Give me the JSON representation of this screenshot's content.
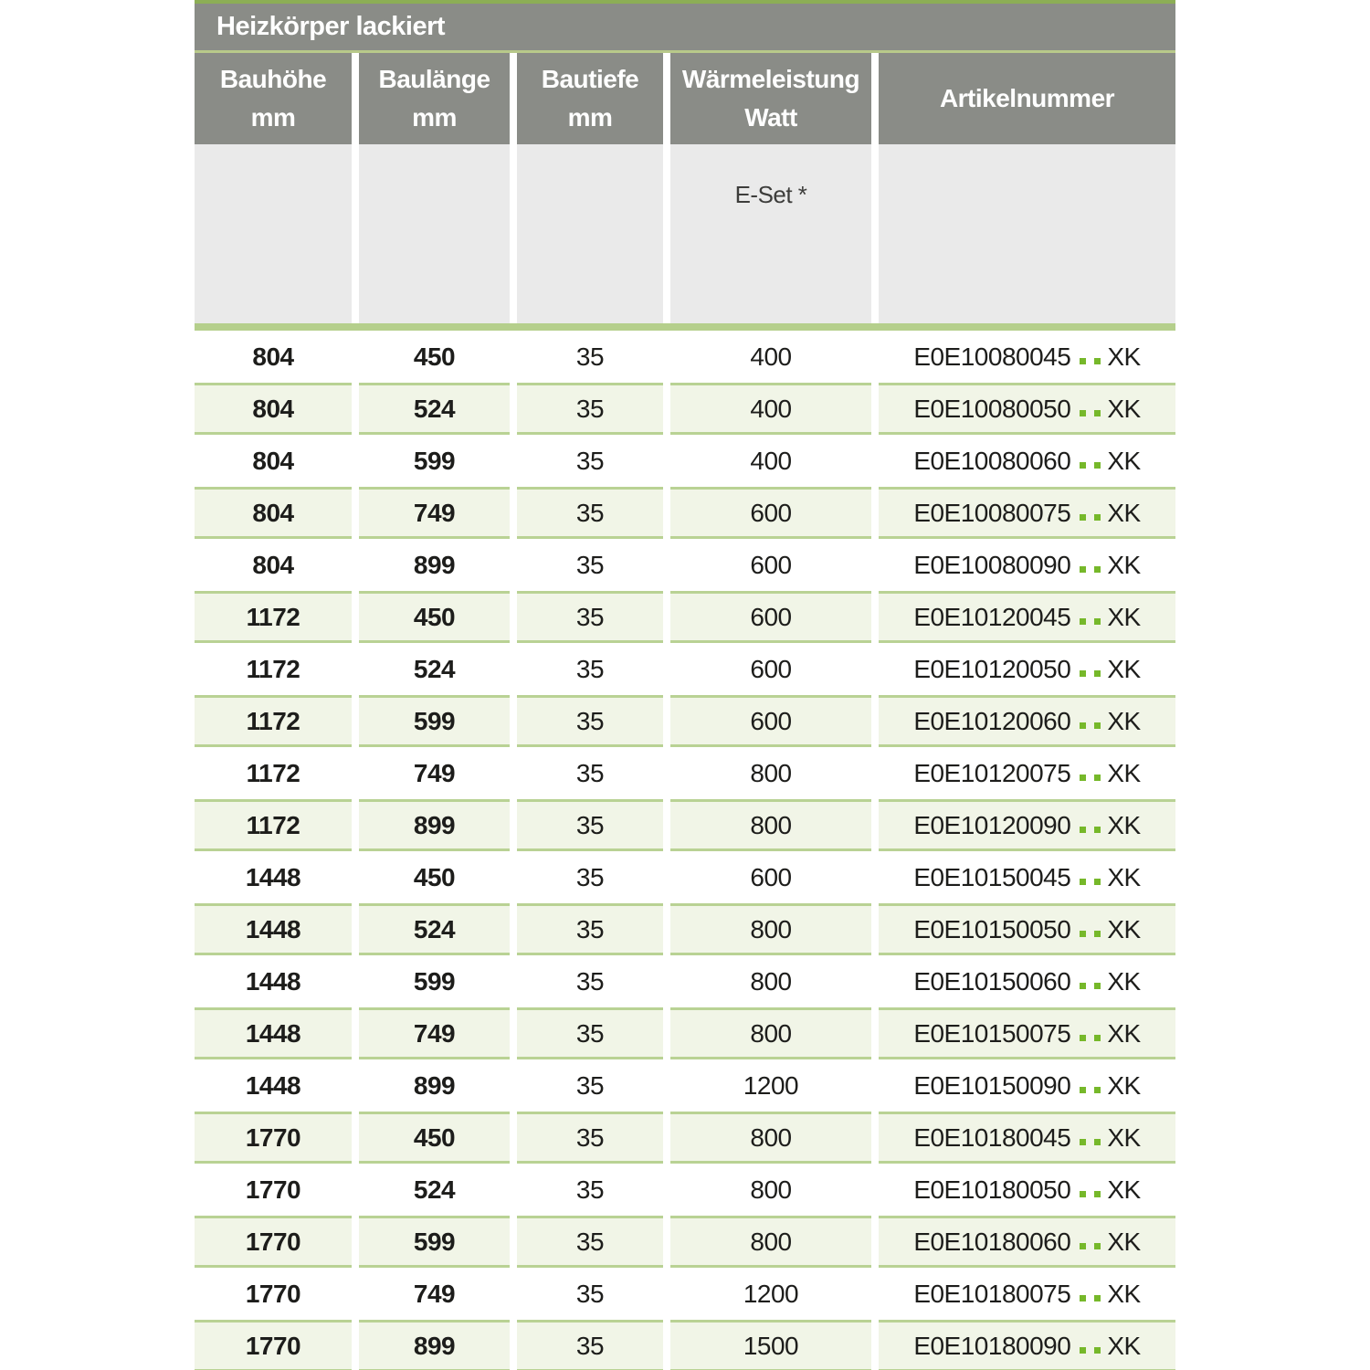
{
  "title": "Heizkörper lackiert",
  "columns": [
    {
      "line1": "Bauhöhe",
      "line2": "mm"
    },
    {
      "line1": "Baulänge",
      "line2": "mm"
    },
    {
      "line1": "Bautiefe",
      "line2": "mm"
    },
    {
      "line1": "Wärmeleistung",
      "line2": "Watt"
    },
    {
      "line1": "Artikelnummer",
      "line2": ""
    }
  ],
  "subheader": {
    "eset_label": "E-Set *"
  },
  "colors": {
    "header_gray": "#8a8c87",
    "top_strip_green": "#8cae55",
    "title_underline_green": "#b8c98a",
    "subheader_gray": "#eaeaea",
    "separator_green": "#b5cf8c",
    "tint_row_bg": "#f1f5e7",
    "tint_row_border": "#b9d294",
    "article_dot_green": "#76b82a",
    "text_dark": "#1d1d1b"
  },
  "rows": [
    {
      "bauhoehe": "804",
      "baulaenge": "450",
      "bautiefe": "35",
      "watt": "400",
      "artikel_prefix": "E0E10080045",
      "artikel_suffix": "XK"
    },
    {
      "bauhoehe": "804",
      "baulaenge": "524",
      "bautiefe": "35",
      "watt": "400",
      "artikel_prefix": "E0E10080050",
      "artikel_suffix": "XK"
    },
    {
      "bauhoehe": "804",
      "baulaenge": "599",
      "bautiefe": "35",
      "watt": "400",
      "artikel_prefix": "E0E10080060",
      "artikel_suffix": "XK"
    },
    {
      "bauhoehe": "804",
      "baulaenge": "749",
      "bautiefe": "35",
      "watt": "600",
      "artikel_prefix": "E0E10080075",
      "artikel_suffix": "XK"
    },
    {
      "bauhoehe": "804",
      "baulaenge": "899",
      "bautiefe": "35",
      "watt": "600",
      "artikel_prefix": "E0E10080090",
      "artikel_suffix": "XK"
    },
    {
      "bauhoehe": "1172",
      "baulaenge": "450",
      "bautiefe": "35",
      "watt": "600",
      "artikel_prefix": "E0E10120045",
      "artikel_suffix": "XK"
    },
    {
      "bauhoehe": "1172",
      "baulaenge": "524",
      "bautiefe": "35",
      "watt": "600",
      "artikel_prefix": "E0E10120050",
      "artikel_suffix": "XK"
    },
    {
      "bauhoehe": "1172",
      "baulaenge": "599",
      "bautiefe": "35",
      "watt": "600",
      "artikel_prefix": "E0E10120060",
      "artikel_suffix": "XK"
    },
    {
      "bauhoehe": "1172",
      "baulaenge": "749",
      "bautiefe": "35",
      "watt": "800",
      "artikel_prefix": "E0E10120075",
      "artikel_suffix": "XK"
    },
    {
      "bauhoehe": "1172",
      "baulaenge": "899",
      "bautiefe": "35",
      "watt": "800",
      "artikel_prefix": "E0E10120090",
      "artikel_suffix": "XK"
    },
    {
      "bauhoehe": "1448",
      "baulaenge": "450",
      "bautiefe": "35",
      "watt": "600",
      "artikel_prefix": "E0E10150045",
      "artikel_suffix": "XK"
    },
    {
      "bauhoehe": "1448",
      "baulaenge": "524",
      "bautiefe": "35",
      "watt": "800",
      "artikel_prefix": "E0E10150050",
      "artikel_suffix": "XK"
    },
    {
      "bauhoehe": "1448",
      "baulaenge": "599",
      "bautiefe": "35",
      "watt": "800",
      "artikel_prefix": "E0E10150060",
      "artikel_suffix": "XK"
    },
    {
      "bauhoehe": "1448",
      "baulaenge": "749",
      "bautiefe": "35",
      "watt": "800",
      "artikel_prefix": "E0E10150075",
      "artikel_suffix": "XK"
    },
    {
      "bauhoehe": "1448",
      "baulaenge": "899",
      "bautiefe": "35",
      "watt": "1200",
      "artikel_prefix": "E0E10150090",
      "artikel_suffix": "XK"
    },
    {
      "bauhoehe": "1770",
      "baulaenge": "450",
      "bautiefe": "35",
      "watt": "800",
      "artikel_prefix": "E0E10180045",
      "artikel_suffix": "XK"
    },
    {
      "bauhoehe": "1770",
      "baulaenge": "524",
      "bautiefe": "35",
      "watt": "800",
      "artikel_prefix": "E0E10180050",
      "artikel_suffix": "XK"
    },
    {
      "bauhoehe": "1770",
      "baulaenge": "599",
      "bautiefe": "35",
      "watt": "800",
      "artikel_prefix": "E0E10180060",
      "artikel_suffix": "XK"
    },
    {
      "bauhoehe": "1770",
      "baulaenge": "749",
      "bautiefe": "35",
      "watt": "1200",
      "artikel_prefix": "E0E10180075",
      "artikel_suffix": "XK"
    },
    {
      "bauhoehe": "1770",
      "baulaenge": "899",
      "bautiefe": "35",
      "watt": "1500",
      "artikel_prefix": "E0E10180090",
      "artikel_suffix": "XK"
    }
  ]
}
